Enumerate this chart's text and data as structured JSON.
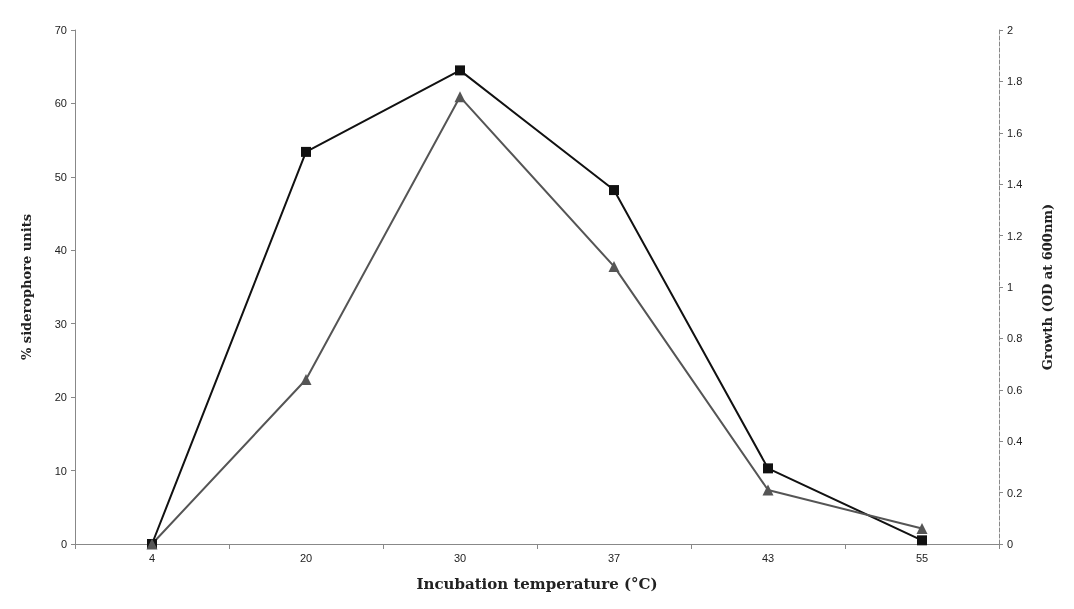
{
  "chart_data": {
    "type": "line",
    "xlabel": "Incubation temperature (°C)",
    "ylabel": "% siderophore units",
    "y2label": "Growth (OD at 600nm)",
    "categories": [
      "4",
      "20",
      "30",
      "37",
      "43",
      "55"
    ],
    "series": [
      {
        "color": "#111111",
        "marker": "square",
        "values": [
          0,
          53.4,
          64.5,
          48.2,
          10.3,
          0.5
        ]
      },
      {
        "color": "#555555",
        "marker": "triangle",
        "axis": "y2",
        "values": [
          0,
          0.64,
          1.74,
          1.08,
          0.21,
          0.06
        ]
      }
    ],
    "ylim": [
      0,
      70
    ],
    "yticks": [
      0,
      10,
      20,
      30,
      40,
      50,
      60,
      70
    ],
    "y2lim": [
      0,
      2
    ],
    "y2ticks": [
      0,
      0.2,
      0.4,
      0.6,
      0.8,
      1,
      1.2,
      1.4,
      1.6,
      1.8,
      2
    ],
    "grid": false,
    "line_style": "solid"
  }
}
